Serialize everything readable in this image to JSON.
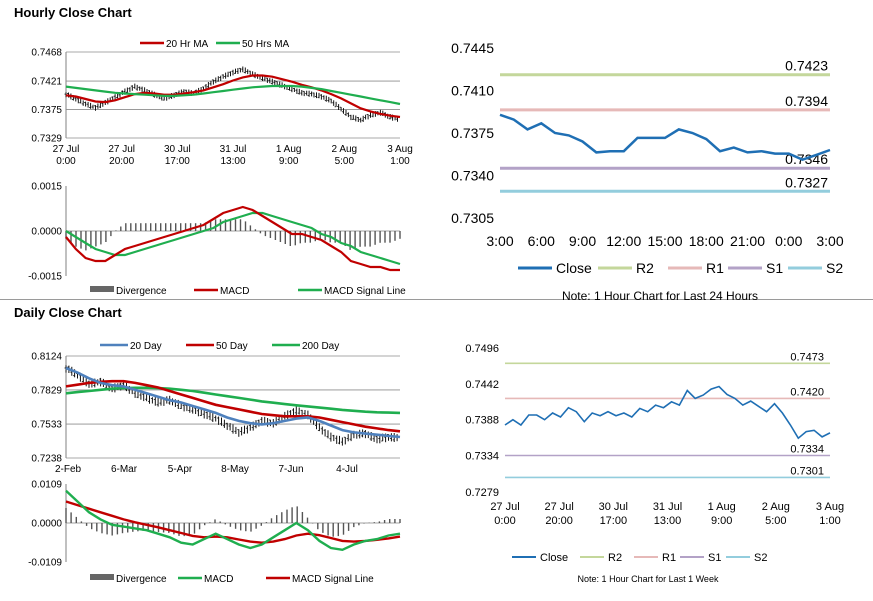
{
  "sections": {
    "hourly_title": "Hourly Close Chart",
    "daily_title": "Daily Close Chart"
  },
  "chart_data": [
    {
      "id": "hourly-price",
      "type": "line",
      "ylim": [
        0.7329,
        0.7468
      ],
      "yticks": [
        "0.7468",
        "0.7421",
        "0.7375",
        "0.7329"
      ],
      "xticks": [
        [
          "27 Jul",
          "0:00"
        ],
        [
          "27 Jul",
          "20:00"
        ],
        [
          "30 Jul",
          "17:00"
        ],
        [
          "31 Jul",
          "13:00"
        ],
        [
          "1 Aug",
          "9:00"
        ],
        [
          "2 Aug",
          "5:00"
        ],
        [
          "3 Aug",
          "1:00"
        ]
      ],
      "legend": [
        {
          "name": "20 Hr MA",
          "color": "#c00000"
        },
        {
          "name": "50 Hrs MA",
          "color": "#1fae4f"
        }
      ],
      "price": [
        0.74,
        0.7392,
        0.7384,
        0.7378,
        0.7386,
        0.7395,
        0.7404,
        0.7412,
        0.7406,
        0.7399,
        0.7393,
        0.7398,
        0.7404,
        0.7401,
        0.7409,
        0.742,
        0.7428,
        0.7435,
        0.744,
        0.7432,
        0.7426,
        0.742,
        0.7414,
        0.7408,
        0.7402,
        0.74,
        0.7396,
        0.7389,
        0.7376,
        0.7363,
        0.7358,
        0.7366,
        0.737,
        0.7363,
        0.7359
      ],
      "series": [
        {
          "name": "20 Hr MA",
          "color": "#c00000",
          "values": [
            0.7398,
            0.7396,
            0.7392,
            0.7388,
            0.7387,
            0.739,
            0.7395,
            0.74,
            0.7402,
            0.7401,
            0.7399,
            0.7399,
            0.7401,
            0.7403,
            0.7406,
            0.7411,
            0.7416,
            0.7422,
            0.7427,
            0.743,
            0.743,
            0.7428,
            0.7424,
            0.742,
            0.7415,
            0.7411,
            0.7406,
            0.74,
            0.7393,
            0.7385,
            0.7377,
            0.7372,
            0.7368,
            0.7365,
            0.7363
          ]
        },
        {
          "name": "50 Hrs MA",
          "color": "#1fae4f",
          "values": [
            0.7412,
            0.741,
            0.7408,
            0.7406,
            0.7404,
            0.7402,
            0.7401,
            0.74,
            0.7399,
            0.7398,
            0.7397,
            0.7397,
            0.7398,
            0.7399,
            0.7401,
            0.7403,
            0.7405,
            0.7407,
            0.7409,
            0.7411,
            0.7412,
            0.7413,
            0.7413,
            0.7413,
            0.7412,
            0.741,
            0.7408,
            0.7405,
            0.7402,
            0.7399,
            0.7396,
            0.7393,
            0.739,
            0.7387,
            0.7384
          ]
        }
      ]
    },
    {
      "id": "hourly-macd",
      "type": "line",
      "ylim": [
        -0.0015,
        0.0015
      ],
      "yticks": [
        "0.0015",
        "0.0000",
        "-0.0015"
      ],
      "legend": [
        {
          "name": "Divergence",
          "color": "#555555"
        },
        {
          "name": "MACD",
          "color": "#c00000"
        },
        {
          "name": "MACD Signal Line",
          "color": "#1fae4f"
        }
      ],
      "series": [
        {
          "name": "MACD",
          "color": "#c00000",
          "values": [
            -0.0002,
            -0.0006,
            -0.0009,
            -0.001,
            -0.001,
            -0.0008,
            -0.0006,
            -0.0005,
            -0.0004,
            -0.0003,
            -0.0002,
            -0.0001,
            0.0,
            0.0001,
            0.0002,
            0.0004,
            0.0006,
            0.0007,
            0.0008,
            0.0007,
            0.0005,
            0.0003,
            0.0001,
            -0.0001,
            -0.0001,
            -0.0002,
            -0.0003,
            -0.0005,
            -0.0007,
            -0.001,
            -0.0011,
            -0.0012,
            -0.0012,
            -0.0013,
            -0.0013
          ]
        },
        {
          "name": "MACD Signal Line",
          "color": "#1fae4f",
          "values": [
            0.0,
            -0.0002,
            -0.0004,
            -0.0006,
            -0.0007,
            -0.0008,
            -0.0008,
            -0.0007,
            -0.0006,
            -0.0005,
            -0.0004,
            -0.0003,
            -0.0002,
            -0.0001,
            0.0,
            0.0001,
            0.0003,
            0.0004,
            0.0005,
            0.0006,
            0.0006,
            0.0005,
            0.0004,
            0.0003,
            0.0002,
            0.0001,
            -0.0001,
            -0.0002,
            -0.0004,
            -0.0005,
            -0.0007,
            -0.0008,
            -0.0009,
            -0.001,
            -0.0011
          ]
        }
      ]
    },
    {
      "id": "hourly-24h",
      "type": "line",
      "ylim": [
        0.7305,
        0.7445
      ],
      "yticks": [
        "0.7445",
        "0.7410",
        "0.7375",
        "0.7340",
        "0.7305"
      ],
      "xticks": [
        "3:00",
        "6:00",
        "9:00",
        "12:00",
        "15:00",
        "18:00",
        "21:00",
        "0:00",
        "3:00"
      ],
      "levels": [
        {
          "name": "R2",
          "value": 0.7423,
          "label": "0.7423",
          "color": "#c4d79b"
        },
        {
          "name": "R1",
          "value": 0.7394,
          "label": "0.7394",
          "color": "#e6b9b8"
        },
        {
          "name": "S1",
          "value": 0.7346,
          "label": "0.7346",
          "color": "#b3a2c7"
        },
        {
          "name": "S2",
          "value": 0.7327,
          "label": "0.7327",
          "color": "#93cddd"
        }
      ],
      "series": [
        {
          "name": "Close",
          "color": "#1f6fb4",
          "values": [
            0.739,
            0.7386,
            0.7378,
            0.7383,
            0.7375,
            0.7373,
            0.7368,
            0.7359,
            0.736,
            0.736,
            0.7371,
            0.7371,
            0.7371,
            0.7378,
            0.7375,
            0.737,
            0.736,
            0.7363,
            0.7359,
            0.736,
            0.7358,
            0.7358,
            0.7353,
            0.7357,
            0.7361
          ]
        }
      ],
      "legend_order": [
        "Close",
        "R2",
        "R1",
        "S1",
        "S2"
      ],
      "note": "Note: 1 Hour Chart for Last 24 Hours"
    },
    {
      "id": "daily-price",
      "type": "line",
      "ylim": [
        0.7238,
        0.8124
      ],
      "yticks": [
        "0.8124",
        "0.7829",
        "0.7533",
        "0.7238"
      ],
      "xticks": [
        "2-Feb",
        "6-Mar",
        "5-Apr",
        "8-May",
        "7-Jun",
        "4-Jul"
      ],
      "legend": [
        {
          "name": "20 Day",
          "color": "#4f81bd"
        },
        {
          "name": "50 Day",
          "color": "#c00000"
        },
        {
          "name": "200 Day",
          "color": "#1fae4f"
        }
      ],
      "price": [
        0.802,
        0.796,
        0.788,
        0.79,
        0.784,
        0.787,
        0.78,
        0.776,
        0.772,
        0.774,
        0.769,
        0.766,
        0.762,
        0.758,
        0.752,
        0.746,
        0.75,
        0.756,
        0.754,
        0.76,
        0.765,
        0.761,
        0.75,
        0.742,
        0.738,
        0.744,
        0.745,
        0.74,
        0.742,
        0.741
      ],
      "series": [
        {
          "name": "20 Day",
          "color": "#4f81bd",
          "values": [
            0.802,
            0.798,
            0.793,
            0.789,
            0.787,
            0.786,
            0.783,
            0.78,
            0.777,
            0.774,
            0.772,
            0.769,
            0.766,
            0.763,
            0.759,
            0.756,
            0.754,
            0.753,
            0.754,
            0.756,
            0.758,
            0.759,
            0.756,
            0.752,
            0.748,
            0.746,
            0.745,
            0.744,
            0.743,
            0.742
          ]
        },
        {
          "name": "50 Day",
          "color": "#c00000",
          "values": [
            0.786,
            0.7875,
            0.789,
            0.79,
            0.7905,
            0.7905,
            0.789,
            0.787,
            0.785,
            0.782,
            0.779,
            0.776,
            0.773,
            0.77,
            0.768,
            0.766,
            0.764,
            0.762,
            0.761,
            0.76,
            0.76,
            0.76,
            0.759,
            0.757,
            0.755,
            0.753,
            0.751,
            0.7495,
            0.748,
            0.747
          ]
        },
        {
          "name": "200 Day",
          "color": "#1fae4f",
          "values": [
            0.78,
            0.781,
            0.782,
            0.783,
            0.784,
            0.7845,
            0.7848,
            0.7848,
            0.7845,
            0.784,
            0.783,
            0.782,
            0.7805,
            0.779,
            0.7775,
            0.776,
            0.7745,
            0.773,
            0.7718,
            0.7706,
            0.7696,
            0.7686,
            0.7676,
            0.7666,
            0.7656,
            0.7648,
            0.764,
            0.7635,
            0.7632,
            0.763
          ]
        }
      ]
    },
    {
      "id": "daily-macd",
      "type": "line",
      "ylim": [
        -0.0109,
        0.0109
      ],
      "yticks": [
        "0.0109",
        "0.0000",
        "-0.0109"
      ],
      "legend": [
        {
          "name": "Divergence",
          "color": "#555555"
        },
        {
          "name": "MACD",
          "color": "#1fae4f"
        },
        {
          "name": "MACD Signal Line",
          "color": "#c00000"
        }
      ],
      "series": [
        {
          "name": "MACD",
          "color": "#1fae4f",
          "values": [
            0.009,
            0.006,
            0.003,
            0.001,
            -0.0005,
            -0.001,
            -0.0015,
            -0.002,
            -0.003,
            -0.004,
            -0.0055,
            -0.006,
            -0.0045,
            -0.003,
            -0.0045,
            -0.006,
            -0.007,
            -0.006,
            -0.004,
            -0.002,
            0.0,
            -0.002,
            -0.005,
            -0.007,
            -0.0075,
            -0.006,
            -0.005,
            -0.0045,
            -0.0035,
            -0.003
          ]
        },
        {
          "name": "MACD Signal Line",
          "color": "#c00000",
          "values": [
            0.006,
            0.005,
            0.004,
            0.003,
            0.002,
            0.001,
            0.0002,
            -0.0005,
            -0.0012,
            -0.002,
            -0.0028,
            -0.0036,
            -0.004,
            -0.0038,
            -0.004,
            -0.0046,
            -0.0052,
            -0.0055,
            -0.0052,
            -0.0045,
            -0.0035,
            -0.003,
            -0.0034,
            -0.0042,
            -0.005,
            -0.0052,
            -0.005,
            -0.0047,
            -0.0043,
            -0.0038
          ]
        }
      ]
    },
    {
      "id": "hourly-week",
      "type": "line",
      "ylim": [
        0.7279,
        0.7496
      ],
      "yticks": [
        "0.7496",
        "0.7442",
        "0.7388",
        "0.7334",
        "0.7279"
      ],
      "xticks": [
        [
          "27 Jul",
          "0:00"
        ],
        [
          "27 Jul",
          "20:00"
        ],
        [
          "30 Jul",
          "17:00"
        ],
        [
          "31 Jul",
          "13:00"
        ],
        [
          "1 Aug",
          "9:00"
        ],
        [
          "2 Aug",
          "5:00"
        ],
        [
          "3 Aug",
          "1:00"
        ]
      ],
      "levels": [
        {
          "name": "R2",
          "value": 0.7473,
          "label": "0.7473",
          "color": "#c4d79b"
        },
        {
          "name": "R1",
          "value": 0.742,
          "label": "0.7420",
          "color": "#e6b9b8"
        },
        {
          "name": "S1",
          "value": 0.7334,
          "label": "0.7334",
          "color": "#b3a2c7"
        },
        {
          "name": "S2",
          "value": 0.7301,
          "label": "0.7301",
          "color": "#93cddd"
        }
      ],
      "series": [
        {
          "name": "Close",
          "color": "#1f6fb4",
          "values": [
            0.738,
            0.7388,
            0.738,
            0.7395,
            0.7395,
            0.7388,
            0.7398,
            0.7392,
            0.7406,
            0.74,
            0.7385,
            0.7398,
            0.7394,
            0.74,
            0.7394,
            0.7398,
            0.7392,
            0.7405,
            0.74,
            0.741,
            0.7406,
            0.7415,
            0.741,
            0.7432,
            0.742,
            0.7425,
            0.7434,
            0.7438,
            0.7426,
            0.742,
            0.741,
            0.7416,
            0.7408,
            0.74,
            0.7412,
            0.7398,
            0.738,
            0.736,
            0.737,
            0.7372,
            0.7362,
            0.7368
          ]
        }
      ],
      "legend_order": [
        "Close",
        "R2",
        "R1",
        "S1",
        "S2"
      ],
      "note": "Note: 1 Hour Chart for Last 1 Week"
    }
  ]
}
